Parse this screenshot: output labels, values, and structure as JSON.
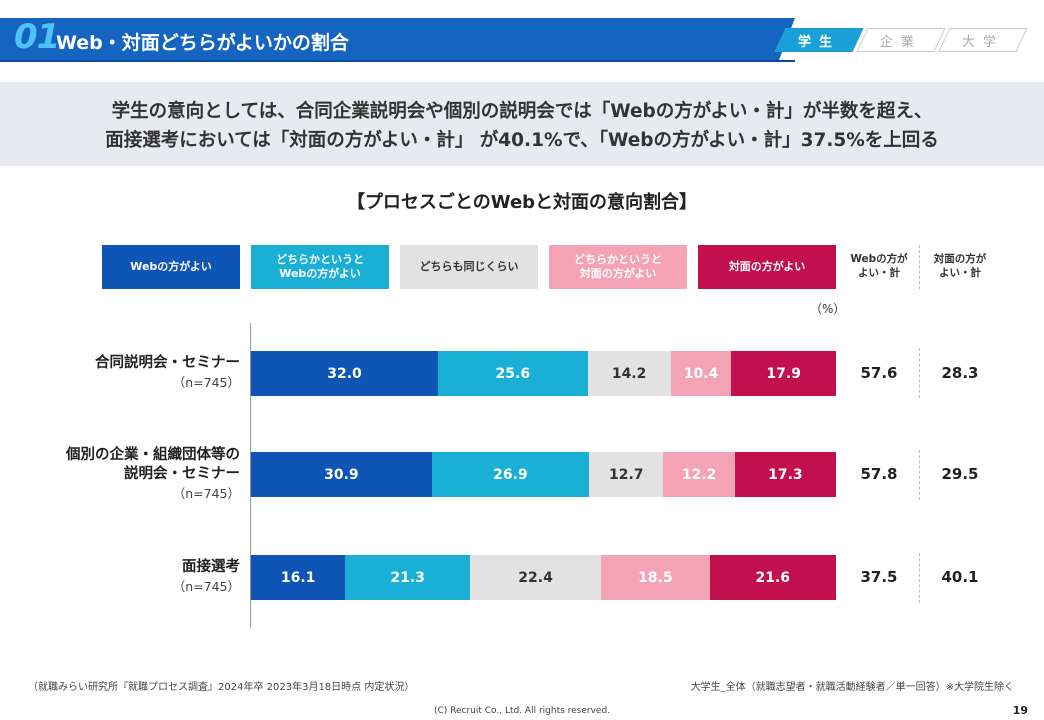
{
  "header": {
    "number": "01",
    "title": "Web・対面どちらがよいかの割合",
    "tabs": [
      {
        "label": "学生",
        "active": true
      },
      {
        "label": "企業",
        "active": false
      },
      {
        "label": "大学",
        "active": false
      }
    ]
  },
  "summary": {
    "line1": "学生の意向としては、合同企業説明会や個別の説明会では「Webの方がよい・計」が半数を超え、",
    "line2": "面接選考においては「対面の方がよい・計」 が40.1%で、「Webの方がよい・計」37.5%を上回る"
  },
  "colors": {
    "web": "#0e55b5",
    "web_leaning": "#1ab0d6",
    "neutral": "#e2e2e2",
    "face_leaning": "#f4a3b4",
    "face": "#c2104e"
  },
  "chart_data": {
    "type": "bar",
    "orientation": "horizontal",
    "stacked": true,
    "title": "【プロセスごとのWebと対面の意向割合】",
    "unit": "（%）",
    "legend_position": "top",
    "categories": [
      {
        "label_lines": [
          "合同説明会・セミナー"
        ],
        "n": "（n=745）"
      },
      {
        "label_lines": [
          "個別の企業・組織団体等の",
          "説明会・セミナー"
        ],
        "n": "（n=745）"
      },
      {
        "label_lines": [
          "面接選考"
        ],
        "n": "（n=745）"
      }
    ],
    "series": [
      {
        "name_lines": [
          "Webの方がよい"
        ],
        "values": [
          32.0,
          30.9,
          16.1
        ],
        "text_color": "#ffffff"
      },
      {
        "name_lines": [
          "どちらかというと",
          "Webの方がよい"
        ],
        "values": [
          25.6,
          26.9,
          21.3
        ],
        "text_color": "#ffffff"
      },
      {
        "name_lines": [
          "どちらも同じくらい"
        ],
        "values": [
          14.2,
          12.7,
          22.4
        ],
        "text_color": "#333333"
      },
      {
        "name_lines": [
          "どちらかというと",
          "対面の方がよい"
        ],
        "values": [
          10.4,
          12.2,
          18.5
        ],
        "text_color": "#ffffff"
      },
      {
        "name_lines": [
          "対面の方がよい"
        ],
        "values": [
          17.9,
          17.3,
          21.6
        ],
        "text_color": "#ffffff"
      }
    ],
    "totals": [
      {
        "header_lines": [
          "Webの方が",
          "よい・計"
        ],
        "values": [
          57.6,
          57.8,
          37.5
        ]
      },
      {
        "header_lines": [
          "対面の方が",
          "よい・計"
        ],
        "values": [
          28.3,
          29.5,
          40.1
        ]
      }
    ],
    "xlim": [
      0,
      100
    ]
  },
  "footer": {
    "source": "（就職みらい研究所『就職プロセス調査』2024年卒 2023年3月18日時点 内定状況）",
    "note": "大学生_全体（就職志望者・就職活動経験者／単一回答）※大学院生除く",
    "copyright": "(C) Recruit  Co., Ltd. All rights reserved.",
    "page": "19"
  }
}
